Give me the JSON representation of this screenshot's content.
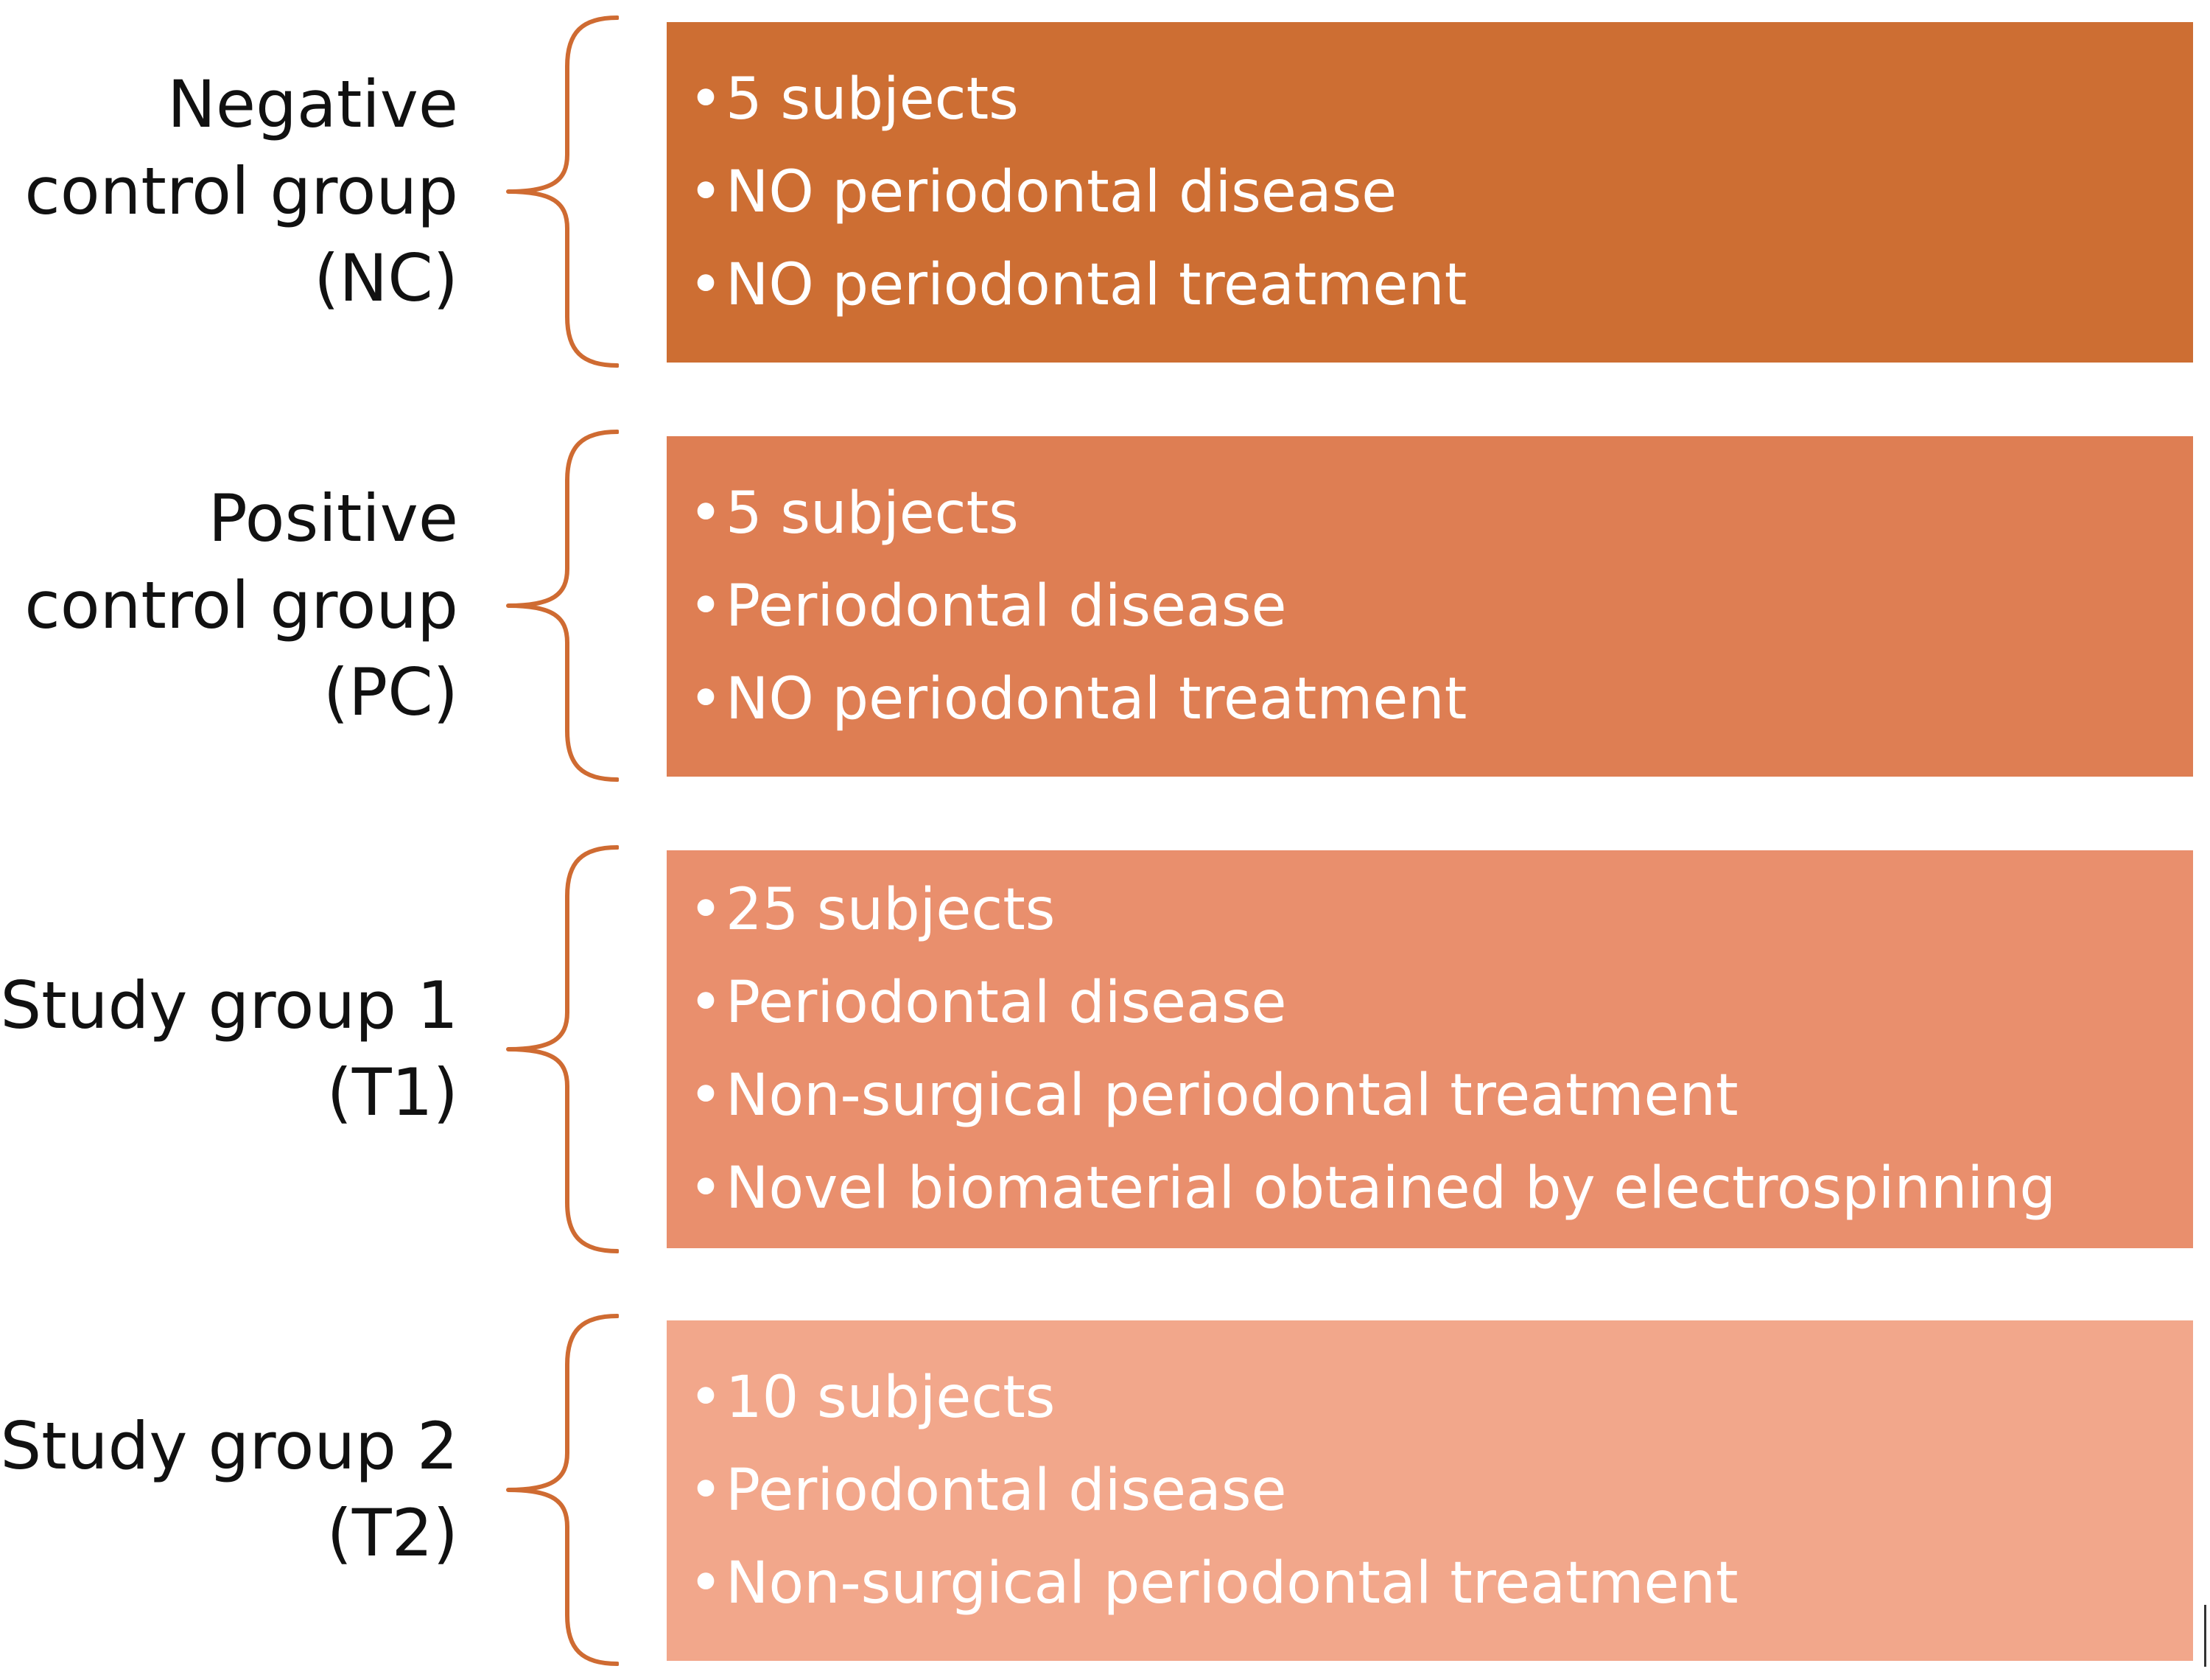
{
  "groups": [
    {
      "label_lines": [
        "Negative",
        "control group",
        "(NC)"
      ],
      "color": "#cd6e33",
      "items": [
        "5 subjects",
        "NO periodontal disease",
        "NO periodontal treatment"
      ]
    },
    {
      "label_lines": [
        "Positive",
        "control group",
        "(PC)"
      ],
      "color": "#de7e53",
      "items": [
        "5 subjects",
        "Periodontal disease",
        "NO periodontal treatment"
      ]
    },
    {
      "label_lines": [
        "Study group 1",
        "(T1)"
      ],
      "color": "#e98f6d",
      "items": [
        "25 subjects",
        "Periodontal disease",
        "Non-surgical periodontal treatment",
        "Novel biomaterial obtained by electrospinning"
      ]
    },
    {
      "label_lines": [
        "Study group 2",
        "(T2)"
      ],
      "color": "#f2a78b",
      "items": [
        "10 subjects",
        "Periodontal disease",
        "Non-surgical periodontal treatment"
      ]
    }
  ]
}
